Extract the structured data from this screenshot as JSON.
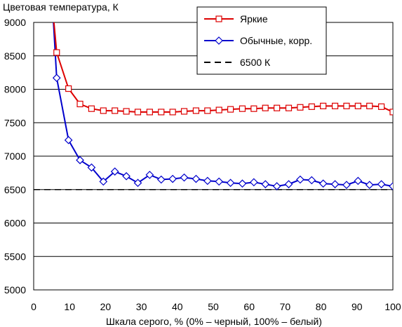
{
  "chart_data": {
    "type": "line",
    "title": "",
    "ylabel": "Цветовая температура, К",
    "xlabel": "Шкала серого, % (0% – черный, 100% – белый)",
    "xlim": [
      0,
      100
    ],
    "ylim": [
      5000,
      9000
    ],
    "xticks": [
      0,
      10,
      20,
      30,
      40,
      50,
      60,
      70,
      80,
      90,
      100
    ],
    "yticks": [
      5000,
      5500,
      6000,
      6500,
      7000,
      7500,
      8000,
      8500,
      9000
    ],
    "grid": "horizontal",
    "legend_position": "top-right",
    "series": [
      {
        "name": "Яркие",
        "color": "#dd0000",
        "marker": "square",
        "x": [
          5.3,
          6.4,
          9.7,
          12.9,
          16.1,
          19.4,
          22.6,
          25.8,
          29.0,
          32.3,
          35.5,
          38.7,
          41.9,
          45.2,
          48.4,
          51.6,
          54.8,
          58.1,
          61.3,
          64.5,
          67.7,
          71.0,
          74.2,
          77.4,
          80.6,
          83.9,
          87.1,
          90.3,
          93.5,
          96.8,
          100
        ],
        "values": [
          9200,
          8550,
          8010,
          7780,
          7710,
          7680,
          7680,
          7670,
          7660,
          7660,
          7660,
          7660,
          7670,
          7680,
          7680,
          7690,
          7700,
          7710,
          7710,
          7720,
          7720,
          7720,
          7730,
          7740,
          7750,
          7750,
          7750,
          7750,
          7750,
          7740,
          7660
        ]
      },
      {
        "name": "Обычные, корр.",
        "color": "#0000cc",
        "marker": "diamond",
        "x": [
          5.3,
          6.4,
          9.7,
          12.9,
          16.1,
          19.4,
          22.6,
          25.8,
          29.0,
          32.3,
          35.5,
          38.7,
          41.9,
          45.2,
          48.4,
          51.6,
          54.8,
          58.1,
          61.3,
          64.5,
          67.7,
          71.0,
          74.2,
          77.4,
          80.6,
          83.9,
          87.1,
          90.3,
          93.5,
          96.8,
          100
        ],
        "values": [
          9200,
          8170,
          7240,
          6940,
          6830,
          6620,
          6770,
          6700,
          6600,
          6720,
          6650,
          6660,
          6680,
          6660,
          6630,
          6620,
          6600,
          6590,
          6610,
          6580,
          6550,
          6580,
          6650,
          6640,
          6590,
          6580,
          6570,
          6630,
          6570,
          6580,
          6550
        ]
      },
      {
        "name": "6500 К",
        "color": "#000000",
        "marker": "none",
        "dashed": true,
        "x": [
          0,
          100
        ],
        "values": [
          6500,
          6500
        ]
      }
    ]
  }
}
